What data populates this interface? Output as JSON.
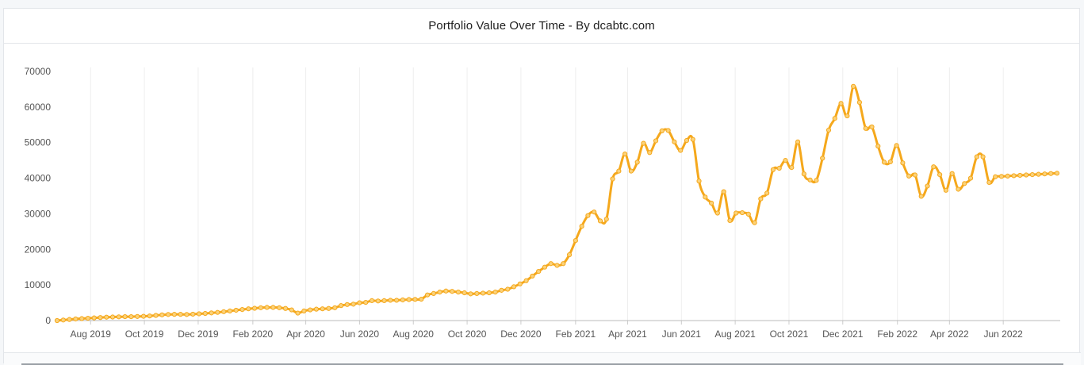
{
  "title": "Portfolio Value Over Time - By dcabtc.com",
  "chart_data": {
    "type": "line",
    "title": "Portfolio Value Over Time - By dcabtc.com",
    "xlabel": "",
    "ylabel": "",
    "ylim": [
      0,
      70000
    ],
    "grid": "vertical",
    "line_color": "#f5a81c",
    "yticks": [
      0,
      10000,
      20000,
      30000,
      40000,
      50000,
      60000,
      70000
    ],
    "xticks": [
      "Aug 2019",
      "Oct 2019",
      "Dec 2019",
      "Feb 2020",
      "Apr 2020",
      "Jun 2020",
      "Aug 2020",
      "Oct 2020",
      "Dec 2020",
      "Feb 2021",
      "Apr 2021",
      "Jun 2021",
      "Aug 2021",
      "Oct 2021",
      "Dec 2021",
      "Feb 2022",
      "Apr 2022",
      "Jun 2022"
    ],
    "x_start": "2019-06-24",
    "x_step_days": 7,
    "values": [
      0,
      150,
      300,
      450,
      550,
      650,
      750,
      850,
      950,
      1000,
      1050,
      1100,
      1100,
      1150,
      1200,
      1300,
      1450,
      1600,
      1700,
      1750,
      1750,
      1700,
      1800,
      1900,
      2000,
      2150,
      2300,
      2500,
      2700,
      2900,
      3100,
      3300,
      3450,
      3600,
      3700,
      3700,
      3600,
      3400,
      3000,
      2100,
      2700,
      3000,
      3200,
      3300,
      3400,
      3600,
      4200,
      4500,
      4600,
      5000,
      5100,
      5600,
      5500,
      5600,
      5700,
      5700,
      5800,
      5900,
      5950,
      6000,
      7200,
      7600,
      8000,
      8300,
      8200,
      8000,
      7800,
      7500,
      7600,
      7700,
      7800,
      8000,
      8500,
      8800,
      9500,
      10300,
      11200,
      12500,
      13800,
      15000,
      16000,
      15500,
      16000,
      18500,
      22500,
      26500,
      29500,
      30500,
      28000,
      28500,
      39800,
      42000,
      46800,
      42000,
      44500,
      49800,
      47200,
      50500,
      53300,
      53400,
      50200,
      47800,
      50600,
      50900,
      39200,
      34700,
      33000,
      30200,
      36200,
      28100,
      30200,
      30300,
      29900,
      27500,
      34200,
      35800,
      42400,
      42800,
      45000,
      43000,
      50200,
      41200,
      39500,
      39400,
      45600,
      53500,
      56800,
      61000,
      57500,
      65800,
      61300,
      54000,
      54400,
      49000,
      44500,
      44600,
      49200,
      44300,
      40600,
      40900,
      34900,
      37800,
      43200,
      41000,
      36600,
      41300,
      36900,
      38500,
      40000,
      46000,
      46000,
      38800,
      40400,
      40500,
      40600,
      40700,
      40800,
      40900,
      41000,
      41100,
      41200,
      41300,
      41400
    ]
  }
}
